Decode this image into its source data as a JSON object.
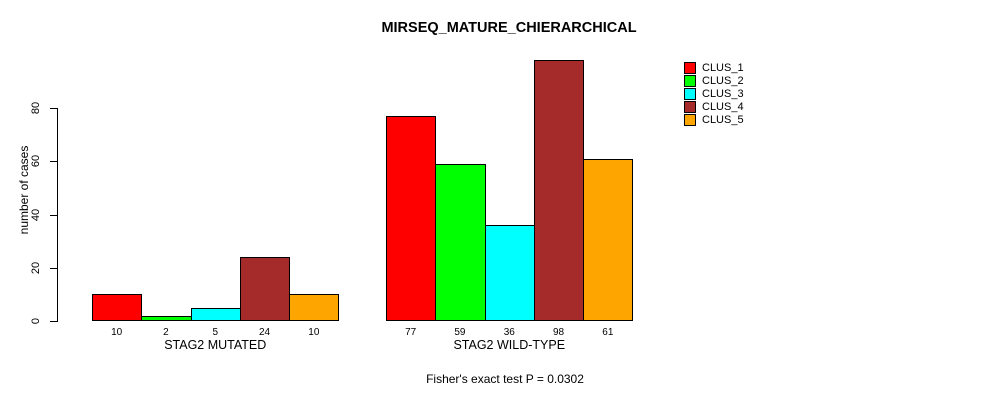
{
  "title": "MIRSEQ_MATURE_CHIERARCHICAL",
  "ylabel": "number of cases",
  "footer": "Fisher's exact test P = 0.0302",
  "legend": [
    {
      "label": "CLUS_1",
      "color": "#ff0000"
    },
    {
      "label": "CLUS_2",
      "color": "#00ff00"
    },
    {
      "label": "CLUS_3",
      "color": "#00ffff"
    },
    {
      "label": "CLUS_4",
      "color": "#a52a2a"
    },
    {
      "label": "CLUS_5",
      "color": "#ffa500"
    }
  ],
  "chart_data": {
    "type": "bar",
    "title": "MIRSEQ_MATURE_CHIERARCHICAL",
    "ylabel": "number of cases",
    "xlabel": "",
    "yticks": [
      0,
      20,
      40,
      60,
      80
    ],
    "ylim": [
      0,
      102
    ],
    "grid": false,
    "legend_position": "right",
    "bar_value_labels_shown": true,
    "series": [
      "CLUS_1",
      "CLUS_2",
      "CLUS_3",
      "CLUS_4",
      "CLUS_5"
    ],
    "colors": [
      "#ff0000",
      "#00ff00",
      "#00ffff",
      "#a52a2a",
      "#ffa500"
    ],
    "groups": [
      {
        "label": "STAG2 MUTATED",
        "values": [
          10,
          2,
          5,
          24,
          10
        ]
      },
      {
        "label": "STAG2 WILD-TYPE",
        "values": [
          77,
          59,
          36,
          98,
          61
        ]
      }
    ],
    "annotation": "Fisher's exact test P = 0.0302"
  }
}
